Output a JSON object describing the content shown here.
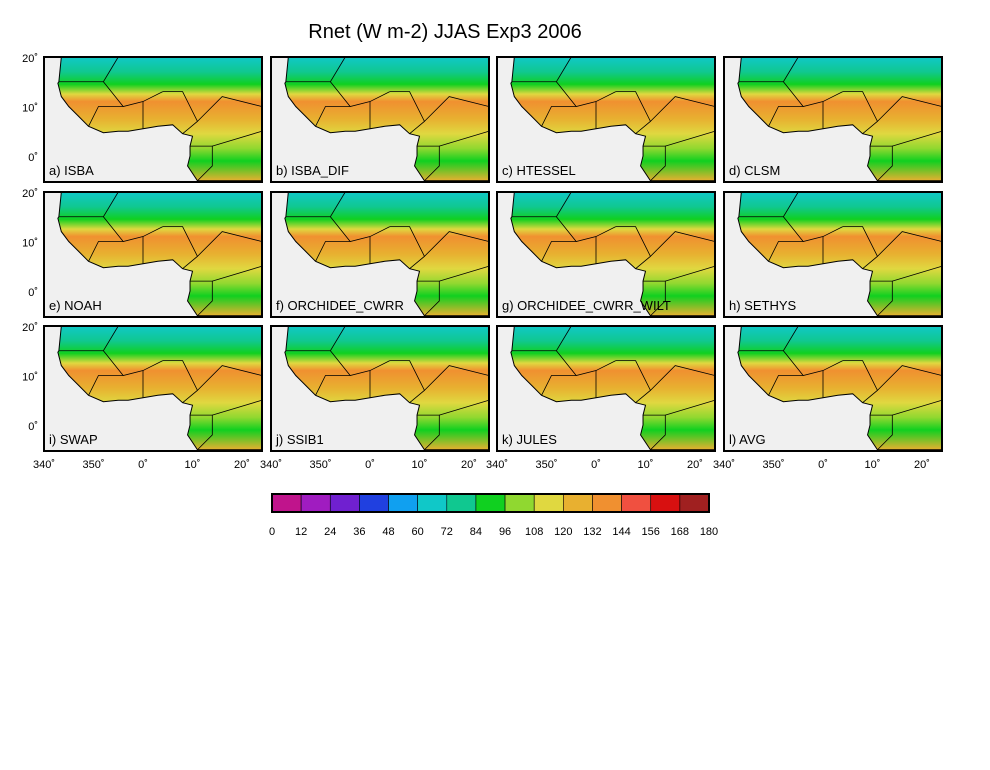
{
  "title": "Rnet (W m-2) JJAS Exp3 2006",
  "panels": [
    "a) ISBA",
    "b) ISBA_DIF",
    "c) HTESSEL",
    "d) CLSM",
    "e) NOAH",
    "f) ORCHIDEE_CWRR",
    "g) ORCHIDEE_CWRR_WILT",
    "h) SETHYS",
    "i) SWAP",
    "j) SSIB1",
    "k) JULES",
    "l) AVG"
  ],
  "lat_labels": [
    "20˚",
    "10˚",
    "0˚"
  ],
  "lon_labels": [
    "340˚",
    "350˚",
    "0˚",
    "10˚",
    "20˚"
  ],
  "colorbar": {
    "ticks": [
      0,
      12,
      24,
      36,
      48,
      60,
      72,
      84,
      96,
      108,
      120,
      132,
      144,
      156,
      168,
      180
    ],
    "colors": [
      "#c0148c",
      "#a01cc0",
      "#7020d0",
      "#2040e0",
      "#10a0f0",
      "#10c8c8",
      "#10c890",
      "#10d020",
      "#90d830",
      "#e0d840",
      "#e8b030",
      "#f09030",
      "#f05040",
      "#d81010",
      "#a02020"
    ]
  }
}
